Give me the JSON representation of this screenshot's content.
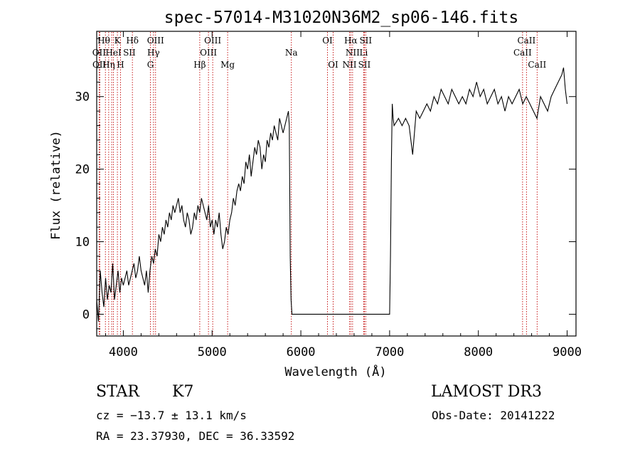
{
  "chart_data": {
    "type": "line",
    "title": "spec-57014-M31020N36M2_sp06-146.fits",
    "xlabel": "Wavelength (Å)",
    "ylabel": "Flux (relative)",
    "xlim": [
      3700,
      9100
    ],
    "ylim": [
      -3,
      39
    ],
    "xticks": [
      4000,
      5000,
      6000,
      7000,
      8000,
      9000
    ],
    "yticks": [
      0,
      10,
      20,
      30
    ],
    "series": [
      {
        "name": "spectrum",
        "x": [
          3700,
          3720,
          3740,
          3760,
          3780,
          3800,
          3820,
          3840,
          3860,
          3880,
          3900,
          3920,
          3940,
          3960,
          3980,
          4000,
          4020,
          4040,
          4060,
          4080,
          4100,
          4120,
          4140,
          4160,
          4180,
          4200,
          4220,
          4240,
          4260,
          4280,
          4300,
          4320,
          4340,
          4360,
          4380,
          4400,
          4420,
          4440,
          4460,
          4480,
          4500,
          4520,
          4540,
          4560,
          4580,
          4600,
          4620,
          4640,
          4660,
          4680,
          4700,
          4720,
          4740,
          4760,
          4780,
          4800,
          4820,
          4840,
          4860,
          4880,
          4900,
          4920,
          4940,
          4960,
          4980,
          5000,
          5020,
          5040,
          5060,
          5080,
          5100,
          5120,
          5140,
          5160,
          5180,
          5200,
          5220,
          5240,
          5260,
          5280,
          5300,
          5320,
          5340,
          5360,
          5380,
          5400,
          5420,
          5440,
          5460,
          5480,
          5500,
          5520,
          5540,
          5560,
          5580,
          5600,
          5620,
          5640,
          5660,
          5680,
          5700,
          5720,
          5740,
          5760,
          5780,
          5800,
          5820,
          5840,
          5860,
          5870,
          5880,
          5890,
          5900,
          5910,
          5920,
          6000,
          6500,
          7000,
          7010,
          7020,
          7030,
          7040,
          7050,
          7100,
          7140,
          7180,
          7220,
          7260,
          7300,
          7340,
          7380,
          7420,
          7460,
          7500,
          7540,
          7580,
          7620,
          7660,
          7700,
          7740,
          7780,
          7820,
          7860,
          7900,
          7940,
          7980,
          8020,
          8060,
          8100,
          8140,
          8180,
          8220,
          8260,
          8300,
          8340,
          8380,
          8420,
          8460,
          8500,
          8540,
          8580,
          8620,
          8660,
          8700,
          8740,
          8780,
          8820,
          8860,
          8900,
          8940,
          8960,
          8980,
          9000
        ],
        "y": [
          2,
          -1,
          6,
          3,
          1,
          5,
          2,
          4,
          3,
          7,
          2,
          4,
          6,
          3,
          5,
          4,
          5,
          6,
          4,
          5,
          6,
          7,
          5,
          6,
          8,
          6,
          5,
          4,
          6,
          3,
          6,
          8,
          7,
          9,
          8,
          11,
          10,
          12,
          11,
          13,
          12,
          14,
          13,
          15,
          14,
          15,
          16,
          14,
          15,
          13,
          12,
          14,
          13,
          11,
          12,
          14,
          13,
          15,
          14,
          16,
          15,
          14,
          13,
          15,
          12,
          13,
          11,
          13,
          12,
          14,
          11,
          9,
          10,
          12,
          11,
          13,
          14,
          16,
          15,
          17,
          18,
          17,
          19,
          18,
          21,
          20,
          22,
          19,
          21,
          23,
          22,
          24,
          23,
          20,
          22,
          21,
          24,
          23,
          25,
          24,
          26,
          25,
          24,
          27,
          26,
          25,
          26,
          27,
          28,
          26,
          8,
          2,
          0,
          0,
          0,
          0,
          0,
          0,
          8,
          21,
          29,
          27,
          26,
          27,
          26,
          27,
          26,
          22,
          28,
          27,
          28,
          29,
          28,
          30,
          29,
          31,
          30,
          29,
          31,
          30,
          29,
          30,
          29,
          31,
          30,
          32,
          30,
          31,
          29,
          30,
          31,
          29,
          30,
          28,
          30,
          29,
          30,
          31,
          29,
          30,
          29,
          28,
          27,
          30,
          29,
          28,
          30,
          31,
          32,
          33,
          34,
          31,
          29
        ]
      }
    ],
    "line_markers": {
      "top_row": [
        "Hθ",
        "K",
        "Hδ",
        "OIII",
        "OIII",
        "OI",
        "Hα",
        "SII",
        "CaII"
      ],
      "mid_row": [
        "OII",
        "HeI",
        "SII",
        "Hγ",
        "OIII",
        "Na",
        "NII",
        "Li",
        "CaII"
      ],
      "low_row": [
        "OII",
        "Hη",
        "H",
        "G",
        "Hβ",
        "Mg",
        "OI",
        "NII",
        "SII",
        "CaII"
      ]
    }
  },
  "info": {
    "class": "STAR",
    "subclass": "K7",
    "survey": "LAMOST DR3",
    "cz": "cz = −13.7 ± 13.1 km/s",
    "obs_date": "Obs-Date: 20141222",
    "radec": "RA =  23.37930, DEC =  36.33592"
  }
}
